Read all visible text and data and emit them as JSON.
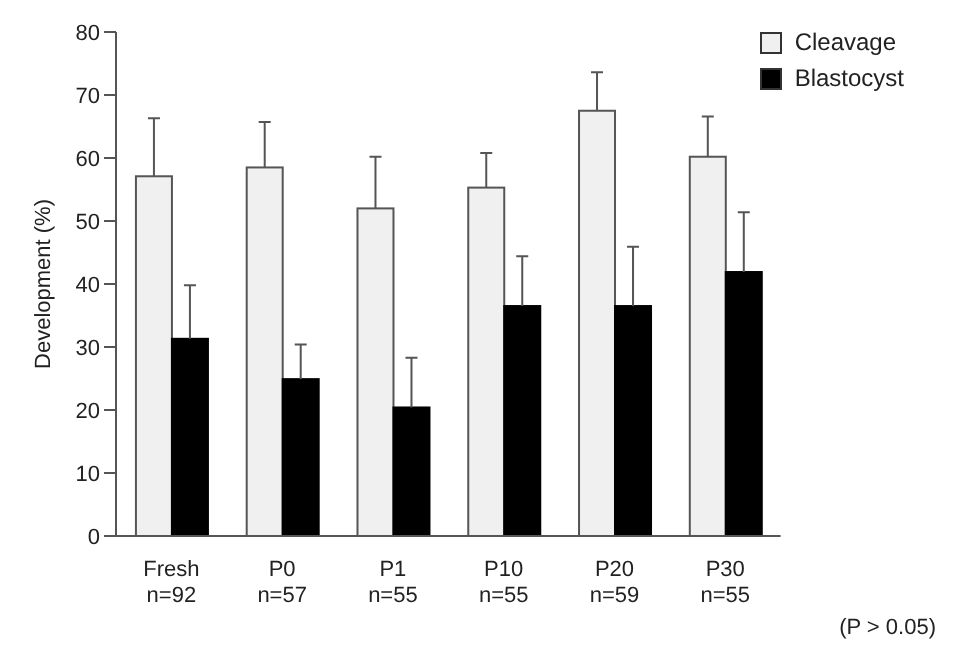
{
  "chart_data": {
    "type": "bar",
    "ylabel": "Development (%)",
    "categories": [
      "Fresh\nn=92",
      "P0\nn=57",
      "P1\nn=55",
      "P10\nn=55",
      "P20\nn=59",
      "P30\nn=55"
    ],
    "series": [
      {
        "name": "Cleavage",
        "color": "#f0f0f0",
        "values": [
          57.1,
          58.5,
          52,
          55.3,
          67.5,
          60.2
        ],
        "errors": [
          [
            57.1,
            66.3
          ],
          [
            58.5,
            65.7
          ],
          [
            52,
            60.2
          ],
          [
            55.3,
            60.8
          ],
          [
            67.5,
            73.6
          ],
          [
            60.2,
            66.6
          ]
        ]
      },
      {
        "name": "Blastocyst",
        "color": "#000000",
        "values": [
          31.3,
          24.9,
          20.4,
          36.5,
          36.5,
          41.9
        ],
        "errors": [
          [
            31.3,
            39.8
          ],
          [
            24.9,
            30.4
          ],
          [
            20.4,
            28.3
          ],
          [
            36.5,
            44.4
          ],
          [
            36.5,
            45.9
          ],
          [
            41.9,
            51.4
          ]
        ]
      }
    ],
    "ylim": [
      0,
      80
    ],
    "yticks": [
      0,
      10,
      20,
      30,
      40,
      50,
      60,
      70,
      80
    ],
    "grid": false,
    "legend": "top right",
    "annotations": [
      "(P > 0.05)"
    ]
  }
}
